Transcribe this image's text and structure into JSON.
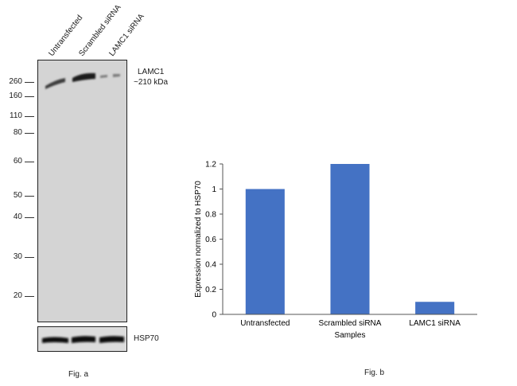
{
  "fig_a": {
    "caption": "Fig. a",
    "lanes": [
      "Untransfected",
      "Scrambled siRNA",
      "LAMC1 siRNA"
    ],
    "markers": [
      "260",
      "160",
      "110",
      "80",
      "60",
      "50",
      "40",
      "30",
      "20"
    ],
    "target_name": "LAMC1",
    "target_size": "~210 kDa",
    "loading_control": "HSP70"
  },
  "fig_b": {
    "caption": "Fig. b"
  },
  "chart_data": {
    "type": "bar",
    "categories": [
      "Untransfected",
      "Scrambled siRNA",
      "LAMC1 siRNA"
    ],
    "values": [
      1.0,
      1.2,
      0.1
    ],
    "xlabel": "Samples",
    "ylabel": "Expression  normalized to HSP70",
    "ylim": [
      0,
      1.2
    ],
    "yticks": [
      "0",
      "0.2",
      "0.4",
      "0.6",
      "0.8",
      "1",
      "1.2"
    ],
    "bar_color": "#4472c4",
    "grid": false,
    "legend": "none"
  }
}
